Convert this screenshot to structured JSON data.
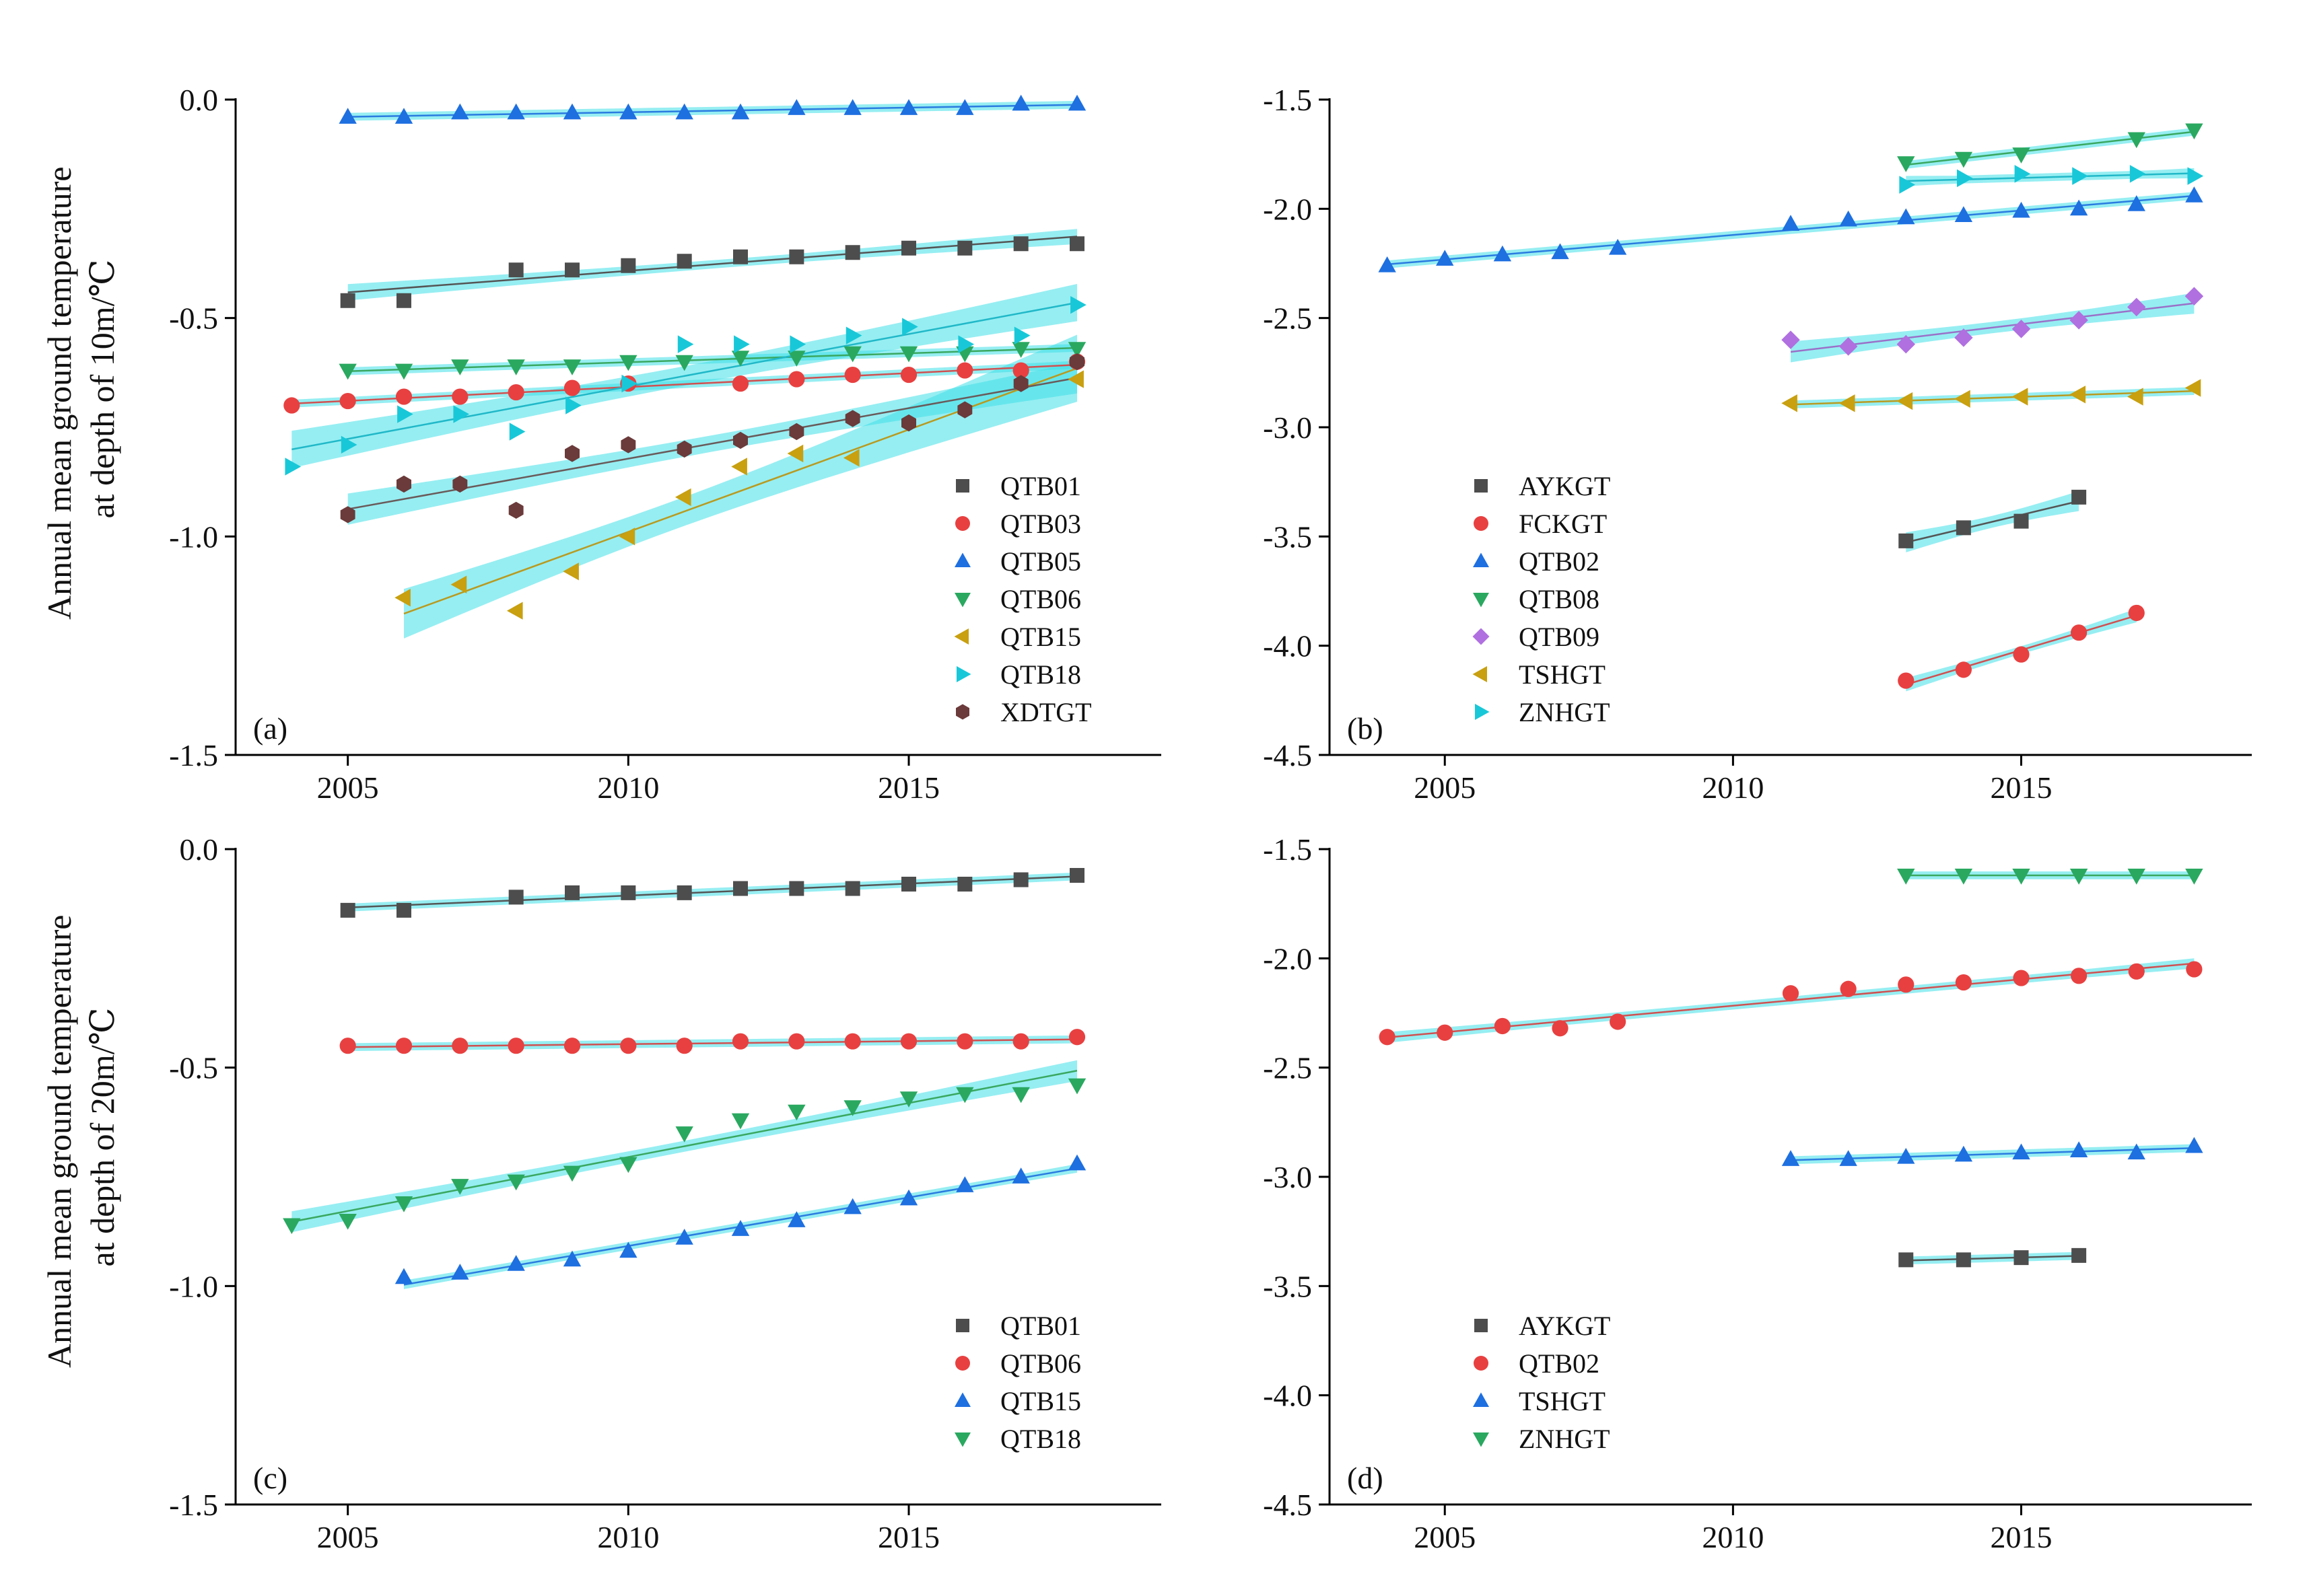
{
  "ylabels": {
    "top": [
      "Annual mean ground temperature",
      "at depth of 10m/℃"
    ],
    "bottom": [
      "Annual mean ground temperature",
      "at depth of 20m/℃"
    ]
  },
  "chart_data": [
    {
      "type": "scatter",
      "panel_label": "(a)",
      "xlim": [
        2003,
        2019.5
      ],
      "ylim": [
        -1.5,
        0.0
      ],
      "xticks": [
        2005,
        2010,
        2015
      ],
      "yticks": [
        0.0,
        -0.5,
        -1.0,
        -1.5
      ],
      "ytick_labels": [
        "0.0",
        "-0.5",
        "-1.0",
        "-1.5"
      ],
      "xtick_labels": [
        "2005",
        "2010",
        "2015"
      ],
      "legend_position": "lower-right",
      "trend_band_color": "#40e0e8",
      "series": [
        {
          "name": "QTB01",
          "marker": "square",
          "color": "#4d4d4d",
          "line_color": "#555555",
          "x": [
            2005,
            2006,
            2008,
            2009,
            2010,
            2011,
            2012,
            2013,
            2014,
            2015,
            2016,
            2017,
            2018
          ],
          "y": [
            -0.46,
            -0.46,
            -0.39,
            -0.39,
            -0.38,
            -0.37,
            -0.36,
            -0.36,
            -0.35,
            -0.34,
            -0.34,
            -0.33,
            -0.33
          ]
        },
        {
          "name": "QTB03",
          "marker": "circle",
          "color": "#e84040",
          "line_color": "#d05050",
          "x": [
            2004,
            2005,
            2006,
            2007,
            2008,
            2009,
            2010,
            2012,
            2013,
            2014,
            2015,
            2016,
            2017,
            2018
          ],
          "y": [
            -0.7,
            -0.69,
            -0.68,
            -0.68,
            -0.67,
            -0.66,
            -0.65,
            -0.65,
            -0.64,
            -0.63,
            -0.63,
            -0.62,
            -0.62,
            -0.6
          ]
        },
        {
          "name": "QTB05",
          "marker": "triangle-up",
          "color": "#1e6fe0",
          "line_color": "#2a7be0",
          "x": [
            2005,
            2006,
            2007,
            2008,
            2009,
            2010,
            2011,
            2012,
            2013,
            2014,
            2015,
            2016,
            2017,
            2018
          ],
          "y": [
            -0.04,
            -0.04,
            -0.03,
            -0.03,
            -0.03,
            -0.03,
            -0.03,
            -0.03,
            -0.02,
            -0.02,
            -0.02,
            -0.02,
            -0.01,
            -0.01
          ]
        },
        {
          "name": "QTB06",
          "marker": "triangle-down",
          "color": "#2aa860",
          "line_color": "#3aa860",
          "x": [
            2005,
            2006,
            2007,
            2008,
            2009,
            2010,
            2011,
            2012,
            2013,
            2014,
            2015,
            2016,
            2017,
            2018
          ],
          "y": [
            -0.62,
            -0.62,
            -0.61,
            -0.61,
            -0.61,
            -0.6,
            -0.6,
            -0.59,
            -0.59,
            -0.58,
            -0.58,
            -0.58,
            -0.57,
            -0.57
          ]
        },
        {
          "name": "QTB15",
          "marker": "triangle-left",
          "color": "#c8a010",
          "line_color": "#b89a20",
          "x": [
            2006,
            2007,
            2008,
            2009,
            2010,
            2011,
            2012,
            2013,
            2014,
            2018
          ],
          "y": [
            -1.14,
            -1.11,
            -1.17,
            -1.08,
            -1.0,
            -0.91,
            -0.84,
            -0.81,
            -0.82,
            -0.64
          ]
        },
        {
          "name": "QTB18",
          "marker": "triangle-right",
          "color": "#18c8d8",
          "line_color": "#20b8c8",
          "x": [
            2004,
            2005,
            2006,
            2007,
            2008,
            2009,
            2010,
            2011,
            2012,
            2013,
            2014,
            2015,
            2016,
            2017,
            2018
          ],
          "y": [
            -0.84,
            -0.79,
            -0.72,
            -0.72,
            -0.76,
            -0.7,
            -0.65,
            -0.56,
            -0.56,
            -0.56,
            -0.54,
            -0.52,
            -0.56,
            -0.54,
            -0.47
          ]
        },
        {
          "name": "XDTGT",
          "marker": "hexagon",
          "color": "#6b3a3a",
          "line_color": "#6a5a5a",
          "x": [
            2005,
            2006,
            2007,
            2008,
            2009,
            2010,
            2011,
            2012,
            2013,
            2014,
            2015,
            2016,
            2017,
            2018
          ],
          "y": [
            -0.95,
            -0.88,
            -0.88,
            -0.94,
            -0.81,
            -0.79,
            -0.8,
            -0.78,
            -0.76,
            -0.73,
            -0.74,
            -0.71,
            -0.65,
            -0.6
          ]
        }
      ]
    },
    {
      "type": "scatter",
      "panel_label": "(b)",
      "xlim": [
        2003,
        2019
      ],
      "ylim": [
        -4.5,
        -1.5
      ],
      "xticks": [
        2005,
        2010,
        2015
      ],
      "yticks": [
        -1.5,
        -2.0,
        -2.5,
        -3.0,
        -3.5,
        -4.0,
        -4.5
      ],
      "ytick_labels": [
        "-1.5",
        "-2.0",
        "-2.5",
        "-3.0",
        "-3.5",
        "-4.0",
        "-4.5"
      ],
      "xtick_labels": [
        "2005",
        "2010",
        "2015"
      ],
      "legend_position": "lower-center",
      "trend_band_color": "#40e0e8",
      "series": [
        {
          "name": "AYKGT",
          "marker": "square",
          "color": "#4d4d4d",
          "line_color": "#555555",
          "x": [
            2013,
            2014,
            2015,
            2016
          ],
          "y": [
            -3.52,
            -3.46,
            -3.43,
            -3.32
          ]
        },
        {
          "name": "FCKGT",
          "marker": "circle",
          "color": "#e84040",
          "line_color": "#d05050",
          "x": [
            2013,
            2014,
            2015,
            2016,
            2017
          ],
          "y": [
            -4.16,
            -4.11,
            -4.04,
            -3.94,
            -3.85
          ]
        },
        {
          "name": "QTB02",
          "marker": "triangle-up",
          "color": "#1e6fe0",
          "line_color": "#2a7be0",
          "x": [
            2004,
            2005,
            2006,
            2007,
            2008,
            2011,
            2012,
            2013,
            2014,
            2015,
            2016,
            2017,
            2018
          ],
          "y": [
            -2.26,
            -2.23,
            -2.21,
            -2.2,
            -2.18,
            -2.07,
            -2.05,
            -2.04,
            -2.03,
            -2.01,
            -2.0,
            -1.98,
            -1.94
          ]
        },
        {
          "name": "QTB08",
          "marker": "triangle-down",
          "color": "#2aa860",
          "line_color": "#3aa860",
          "x": [
            2013,
            2014,
            2015,
            2017,
            2018
          ],
          "y": [
            -1.79,
            -1.77,
            -1.75,
            -1.68,
            -1.64
          ]
        },
        {
          "name": "QTB09",
          "marker": "diamond",
          "color": "#b070e0",
          "line_color": "#9a70c8",
          "x": [
            2011,
            2012,
            2013,
            2014,
            2015,
            2016,
            2017,
            2018
          ],
          "y": [
            -2.6,
            -2.63,
            -2.62,
            -2.59,
            -2.55,
            -2.51,
            -2.45,
            -2.4
          ]
        },
        {
          "name": "TSHGT",
          "marker": "triangle-left",
          "color": "#c8a010",
          "line_color": "#b89a20",
          "x": [
            2011,
            2012,
            2013,
            2014,
            2015,
            2016,
            2017,
            2018
          ],
          "y": [
            -2.89,
            -2.89,
            -2.88,
            -2.87,
            -2.86,
            -2.85,
            -2.86,
            -2.82
          ]
        },
        {
          "name": "ZNHGT",
          "marker": "triangle-right",
          "color": "#18c8d8",
          "line_color": "#20b8c8",
          "x": [
            2013,
            2014,
            2015,
            2016,
            2017,
            2018
          ],
          "y": [
            -1.89,
            -1.86,
            -1.84,
            -1.85,
            -1.84,
            -1.85
          ]
        }
      ]
    },
    {
      "type": "scatter",
      "panel_label": "(c)",
      "xlim": [
        2003,
        2019.5
      ],
      "ylim": [
        -1.5,
        0.0
      ],
      "xticks": [
        2005,
        2010,
        2015
      ],
      "yticks": [
        0.0,
        -0.5,
        -1.0,
        -1.5
      ],
      "ytick_labels": [
        "0.0",
        "-0.5",
        "-1.0",
        "-1.5"
      ],
      "xtick_labels": [
        "2005",
        "2010",
        "2015"
      ],
      "legend_position": "lower-right",
      "trend_band_color": "#40e0e8",
      "series": [
        {
          "name": "QTB01",
          "marker": "square",
          "color": "#4d4d4d",
          "line_color": "#555555",
          "x": [
            2005,
            2006,
            2008,
            2009,
            2010,
            2011,
            2012,
            2013,
            2014,
            2015,
            2016,
            2017,
            2018
          ],
          "y": [
            -0.14,
            -0.14,
            -0.11,
            -0.1,
            -0.1,
            -0.1,
            -0.09,
            -0.09,
            -0.09,
            -0.08,
            -0.08,
            -0.07,
            -0.06
          ]
        },
        {
          "name": "QTB06",
          "marker": "circle",
          "color": "#e84040",
          "line_color": "#d05050",
          "x": [
            2005,
            2006,
            2007,
            2008,
            2009,
            2010,
            2011,
            2012,
            2013,
            2014,
            2015,
            2016,
            2017,
            2018
          ],
          "y": [
            -0.45,
            -0.45,
            -0.45,
            -0.45,
            -0.45,
            -0.45,
            -0.45,
            -0.44,
            -0.44,
            -0.44,
            -0.44,
            -0.44,
            -0.44,
            -0.43
          ]
        },
        {
          "name": "QTB15",
          "marker": "triangle-up",
          "color": "#1e6fe0",
          "line_color": "#2a7be0",
          "x": [
            2006,
            2007,
            2008,
            2009,
            2010,
            2011,
            2012,
            2013,
            2014,
            2015,
            2016,
            2017,
            2018
          ],
          "y": [
            -0.98,
            -0.97,
            -0.95,
            -0.94,
            -0.92,
            -0.89,
            -0.87,
            -0.85,
            -0.82,
            -0.8,
            -0.77,
            -0.75,
            -0.72
          ]
        },
        {
          "name": "QTB18",
          "marker": "triangle-down",
          "color": "#2aa860",
          "line_color": "#3aa860",
          "x": [
            2004,
            2005,
            2006,
            2007,
            2008,
            2009,
            2010,
            2011,
            2012,
            2013,
            2014,
            2015,
            2016,
            2017,
            2018
          ],
          "y": [
            -0.86,
            -0.85,
            -0.81,
            -0.77,
            -0.76,
            -0.74,
            -0.72,
            -0.65,
            -0.62,
            -0.6,
            -0.59,
            -0.57,
            -0.56,
            -0.56,
            -0.54
          ]
        }
      ]
    },
    {
      "type": "scatter",
      "panel_label": "(d)",
      "xlim": [
        2003,
        2019
      ],
      "ylim": [
        -4.5,
        -1.5
      ],
      "xticks": [
        2005,
        2010,
        2015
      ],
      "yticks": [
        -1.5,
        -2.0,
        -2.5,
        -3.0,
        -3.5,
        -4.0,
        -4.5
      ],
      "ytick_labels": [
        "-1.5",
        "-2.0",
        "-2.5",
        "-3.0",
        "-3.5",
        "-4.0",
        "-4.5"
      ],
      "xtick_labels": [
        "2005",
        "2010",
        "2015"
      ],
      "legend_position": "lower-center",
      "trend_band_color": "#40e0e8",
      "series": [
        {
          "name": "AYKGT",
          "marker": "square",
          "color": "#4d4d4d",
          "line_color": "#555555",
          "x": [
            2013,
            2014,
            2015,
            2016
          ],
          "y": [
            -3.38,
            -3.38,
            -3.37,
            -3.36
          ]
        },
        {
          "name": "QTB02",
          "marker": "circle",
          "color": "#e84040",
          "line_color": "#d05050",
          "x": [
            2004,
            2005,
            2006,
            2007,
            2008,
            2011,
            2012,
            2013,
            2014,
            2015,
            2016,
            2017,
            2018
          ],
          "y": [
            -2.36,
            -2.34,
            -2.31,
            -2.32,
            -2.29,
            -2.16,
            -2.14,
            -2.12,
            -2.11,
            -2.09,
            -2.08,
            -2.06,
            -2.05
          ]
        },
        {
          "name": "TSHGT",
          "marker": "triangle-up",
          "color": "#1e6fe0",
          "line_color": "#2a7be0",
          "x": [
            2011,
            2012,
            2013,
            2014,
            2015,
            2016,
            2017,
            2018
          ],
          "y": [
            -2.92,
            -2.92,
            -2.91,
            -2.9,
            -2.89,
            -2.88,
            -2.89,
            -2.86
          ]
        },
        {
          "name": "ZNHGT",
          "marker": "triangle-down",
          "color": "#2aa860",
          "line_color": "#3aa860",
          "x": [
            2013,
            2014,
            2015,
            2016,
            2017,
            2018
          ],
          "y": [
            -1.62,
            -1.62,
            -1.62,
            -1.62,
            -1.62,
            -1.62
          ]
        }
      ]
    }
  ]
}
